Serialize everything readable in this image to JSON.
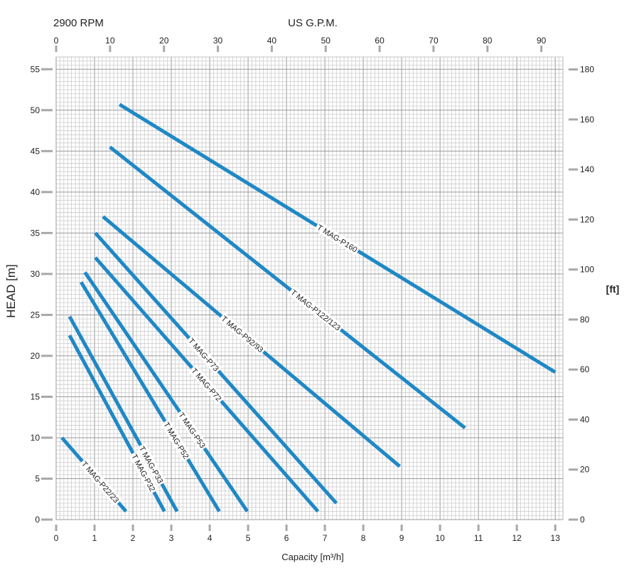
{
  "chart_data": {
    "type": "line",
    "top_left_label": "2900 RPM",
    "top_axis_label": "US G.P.M.",
    "xlabel": "Capacity  [m³/h]",
    "ylabel": "HEAD [m]",
    "y2label": "[ft]",
    "xlim": [
      0,
      13.2
    ],
    "ylim": [
      0,
      56.5
    ],
    "top_xlim": [
      0,
      94
    ],
    "y2lim": [
      0,
      185
    ],
    "x_ticks": [
      "0",
      "1",
      "2",
      "3",
      "4",
      "5",
      "6",
      "7",
      "8",
      "9",
      "10",
      "11",
      "12",
      "13"
    ],
    "y_ticks": [
      "0",
      "5",
      "10",
      "15",
      "20",
      "25",
      "30",
      "35",
      "40",
      "45",
      "50",
      "55"
    ],
    "top_ticks": [
      "0",
      "10",
      "20",
      "30",
      "40",
      "50",
      "60",
      "70",
      "80",
      "90"
    ],
    "y2_ticks": [
      "0",
      "20",
      "40",
      "60",
      "80",
      "100",
      "120",
      "140",
      "160",
      "180"
    ],
    "grid": true,
    "line_color": "#1f88c6",
    "series": [
      {
        "name": "T MAG-P22/23",
        "x": [
          0.15,
          1.82
        ],
        "y": [
          10.0,
          1.0
        ],
        "label_at": 0.6
      },
      {
        "name": "T MAG-P32",
        "x": [
          0.35,
          2.82
        ],
        "y": [
          22.5,
          1.0
        ],
        "label_at": 0.78
      },
      {
        "name": "T MAG-P33",
        "x": [
          0.35,
          3.15
        ],
        "y": [
          24.8,
          1.0
        ],
        "label_at": 0.76
      },
      {
        "name": "T MAG-P52",
        "x": [
          0.65,
          4.25
        ],
        "y": [
          29.0,
          1.0
        ],
        "label_at": 0.69
      },
      {
        "name": "T MAG-P53",
        "x": [
          0.75,
          4.98
        ],
        "y": [
          30.2,
          1.0
        ],
        "label_at": 0.66
      },
      {
        "name": "T MAG-P72",
        "x": [
          1.02,
          6.82
        ],
        "y": [
          32.0,
          1.0
        ],
        "label_at": 0.5
      },
      {
        "name": "T MAG-P73",
        "x": [
          1.02,
          7.3
        ],
        "y": [
          35.0,
          2.0
        ],
        "label_at": 0.45
      },
      {
        "name": "T MAG-P92/93",
        "x": [
          1.22,
          8.95
        ],
        "y": [
          37.0,
          6.5
        ],
        "label_at": 0.47
      },
      {
        "name": "T MAG-P122/123",
        "x": [
          1.4,
          10.65
        ],
        "y": [
          45.5,
          11.2
        ],
        "label_at": 0.58
      },
      {
        "name": "T MAG-P160",
        "x": [
          1.65,
          13.0
        ],
        "y": [
          50.7,
          18.0
        ],
        "label_at": 0.5
      }
    ]
  }
}
